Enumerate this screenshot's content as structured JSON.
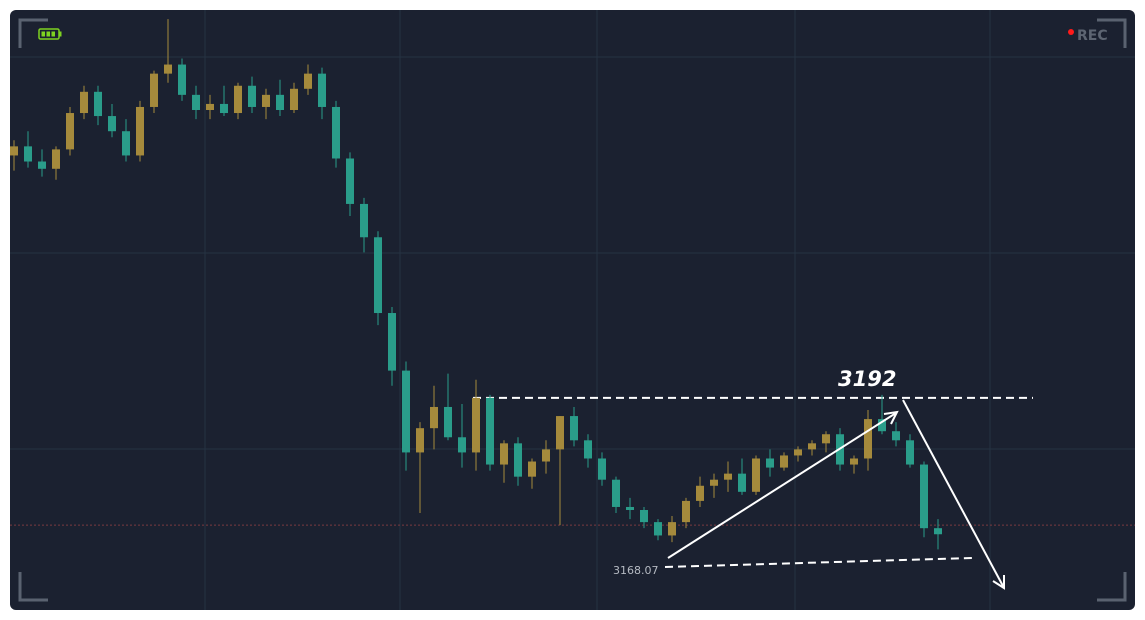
{
  "chart_data": {
    "type": "candlestick",
    "status": "REC",
    "ylim": [
      3157,
      3256
    ],
    "grid": true,
    "up_color": "#a58a3c",
    "down_color": "#2a9d8a",
    "price_line": 3171,
    "resistance_label": 3192,
    "support_label": "3168.07",
    "candles": [
      [
        3232.0,
        3234.5,
        3229.5,
        3233.5
      ],
      [
        3233.5,
        3236.0,
        3230.0,
        3231.0
      ],
      [
        3231.0,
        3233.0,
        3228.5,
        3229.8
      ],
      [
        3229.8,
        3233.5,
        3228.0,
        3233.0
      ],
      [
        3233.0,
        3240.0,
        3232.0,
        3239.0
      ],
      [
        3239.0,
        3243.5,
        3238.0,
        3242.5
      ],
      [
        3242.5,
        3243.5,
        3237.0,
        3238.5
      ],
      [
        3238.5,
        3240.5,
        3235.0,
        3236.0
      ],
      [
        3236.0,
        3238.0,
        3231.0,
        3232.0
      ],
      [
        3232.0,
        3241.0,
        3231.0,
        3240.0
      ],
      [
        3240.0,
        3246.0,
        3239.0,
        3245.5
      ],
      [
        3245.5,
        3254.5,
        3244.0,
        3247.0
      ],
      [
        3247.0,
        3248.0,
        3241.0,
        3242.0
      ],
      [
        3242.0,
        3243.5,
        3238.0,
        3239.5
      ],
      [
        3239.5,
        3242.0,
        3238.0,
        3240.5
      ],
      [
        3240.5,
        3243.5,
        3238.5,
        3239.0
      ],
      [
        3239.0,
        3244.0,
        3238.0,
        3243.5
      ],
      [
        3243.5,
        3245.0,
        3239.0,
        3240.0
      ],
      [
        3240.0,
        3243.0,
        3238.0,
        3242.0
      ],
      [
        3242.0,
        3244.5,
        3238.5,
        3239.5
      ],
      [
        3239.5,
        3244.0,
        3239.0,
        3243.0
      ],
      [
        3243.0,
        3247.0,
        3242.0,
        3245.5
      ],
      [
        3245.5,
        3246.5,
        3238.0,
        3240.0
      ],
      [
        3240.0,
        3241.0,
        3230.0,
        3231.5
      ],
      [
        3231.5,
        3232.5,
        3222.0,
        3224.0
      ],
      [
        3224.0,
        3225.0,
        3216.0,
        3218.5
      ],
      [
        3218.5,
        3219.5,
        3204.0,
        3206.0
      ],
      [
        3206.0,
        3207.0,
        3194.0,
        3196.5
      ],
      [
        3196.5,
        3198.0,
        3180.0,
        3183.0
      ],
      [
        3183.0,
        3188.0,
        3173.0,
        3187.0
      ],
      [
        3187.0,
        3194.0,
        3183.5,
        3190.5
      ],
      [
        3190.5,
        3196.0,
        3185.0,
        3185.5
      ],
      [
        3185.5,
        3191.0,
        3180.5,
        3183.0
      ],
      [
        3183.0,
        3195.0,
        3180.0,
        3192.0
      ],
      [
        3192.0,
        3192.5,
        3180.0,
        3181.0
      ],
      [
        3181.0,
        3185.0,
        3178.0,
        3184.5
      ],
      [
        3184.5,
        3185.5,
        3177.5,
        3179.0
      ],
      [
        3179.0,
        3182.0,
        3177.0,
        3181.5
      ],
      [
        3181.5,
        3185.0,
        3179.5,
        3183.5
      ],
      [
        3183.5,
        3189.0,
        3171.0,
        3189.0
      ],
      [
        3189.0,
        3190.5,
        3184.0,
        3185.0
      ],
      [
        3185.0,
        3186.0,
        3180.5,
        3182.0
      ],
      [
        3182.0,
        3183.0,
        3177.5,
        3178.5
      ],
      [
        3178.5,
        3179.0,
        3173.0,
        3174.0
      ],
      [
        3174.0,
        3175.5,
        3172.0,
        3173.5
      ],
      [
        3173.5,
        3174.0,
        3170.5,
        3171.5
      ],
      [
        3171.5,
        3172.0,
        3168.5,
        3169.3
      ],
      [
        3169.3,
        3172.5,
        3168.2,
        3171.5
      ],
      [
        3171.5,
        3175.5,
        3170.5,
        3175.0
      ],
      [
        3175.0,
        3179.0,
        3174.0,
        3177.5
      ],
      [
        3177.5,
        3179.5,
        3175.5,
        3178.5
      ],
      [
        3178.5,
        3181.5,
        3176.5,
        3179.5
      ],
      [
        3179.5,
        3182.0,
        3176.0,
        3176.5
      ],
      [
        3176.5,
        3182.5,
        3176.0,
        3182.0
      ],
      [
        3182.0,
        3183.5,
        3179.0,
        3180.5
      ],
      [
        3180.5,
        3183.0,
        3180.0,
        3182.5
      ],
      [
        3182.5,
        3184.0,
        3181.5,
        3183.5
      ],
      [
        3183.5,
        3185.0,
        3182.5,
        3184.5
      ],
      [
        3184.5,
        3186.5,
        3183.0,
        3186.0
      ],
      [
        3186.0,
        3187.0,
        3180.0,
        3181.0
      ],
      [
        3181.0,
        3182.5,
        3179.5,
        3182.0
      ],
      [
        3182.0,
        3190.0,
        3180.0,
        3188.5
      ],
      [
        3188.5,
        3192.5,
        3186.0,
        3186.5
      ],
      [
        3186.5,
        3188.0,
        3184.0,
        3185.0
      ],
      [
        3185.0,
        3186.0,
        3180.5,
        3181.0
      ],
      [
        3181.0,
        3181.5,
        3169.0,
        3170.5
      ],
      [
        3170.5,
        3172.0,
        3167.0,
        3169.5
      ]
    ]
  }
}
